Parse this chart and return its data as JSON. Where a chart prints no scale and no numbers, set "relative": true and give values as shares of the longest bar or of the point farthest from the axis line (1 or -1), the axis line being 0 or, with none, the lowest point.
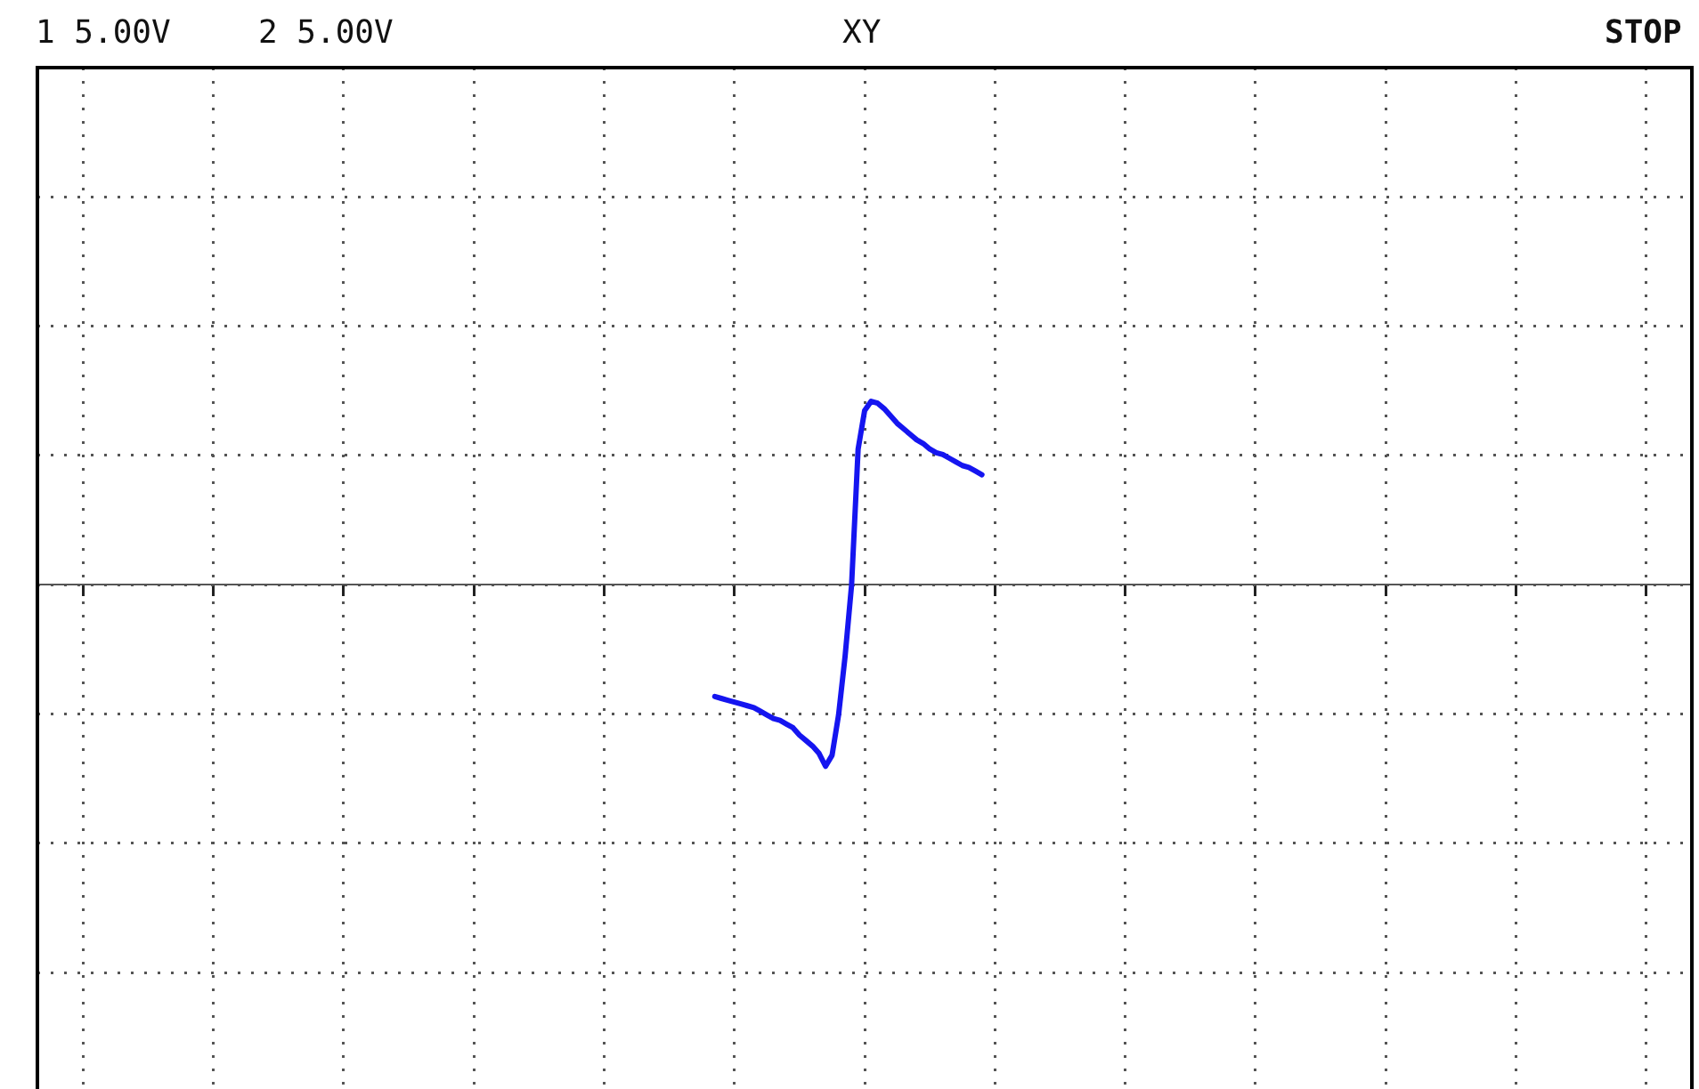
{
  "chart_data": {
    "type": "line",
    "title": "XY",
    "annotations": [
      "1 5.00V",
      "2 5.00V",
      "STOP"
    ],
    "relative": true,
    "grid": true,
    "legend": false,
    "marker": "none",
    "line_style": "solid",
    "categories": [
      null,
      null,
      null,
      null,
      null,
      null,
      null,
      null,
      null,
      null,
      null,
      null,
      null,
      null,
      null,
      null,
      null,
      null,
      null,
      null,
      null,
      null,
      null,
      null,
      null,
      null,
      null,
      null,
      null,
      null,
      null,
      null,
      null,
      null,
      null,
      null,
      null,
      null,
      null,
      null,
      null,
      null,
      null,
      null,
      null,
      null,
      null,
      null,
      null,
      null,
      null,
      null,
      null,
      null,
      null,
      null,
      null,
      null,
      null,
      null,
      null,
      null,
      null,
      null,
      null,
      null,
      null,
      null,
      null,
      null,
      null,
      null,
      null,
      null,
      null,
      null,
      null,
      null,
      null,
      null,
      null,
      null,
      null,
      null,
      null,
      null,
      null,
      null,
      null,
      null,
      null,
      null,
      null,
      null,
      null,
      null,
      null,
      null,
      null,
      null,
      null,
      null,
      null,
      null,
      null,
      null,
      null,
      null,
      null,
      null,
      null,
      null,
      null,
      null,
      null,
      null,
      null,
      null,
      null,
      null,
      null,
      null,
      null,
      null,
      null,
      null,
      null,
      null,
      null,
      null,
      null,
      null,
      null,
      null,
      null,
      null,
      null,
      null,
      null,
      null,
      null,
      null,
      null,
      null,
      null,
      null,
      null,
      null,
      null,
      null,
      null,
      null,
      null,
      null,
      null,
      null,
      null,
      null,
      null,
      null,
      null,
      null,
      null,
      null,
      null,
      null,
      null,
      null,
      null,
      null,
      null,
      null,
      null,
      null,
      null,
      null,
      null,
      null,
      null,
      null,
      null,
      null,
      null,
      null,
      null,
      null,
      null,
      null,
      null,
      null,
      null,
      null,
      null,
      null,
      null,
      null,
      null,
      null,
      null,
      null,
      null,
      null,
      null,
      null,
      null,
      null,
      null,
      null,
      null,
      null,
      null,
      null,
      null,
      null,
      null,
      null,
      null,
      null,
      null,
      null,
      null,
      null,
      null,
      null,
      null,
      null,
      null,
      null,
      null,
      null,
      null,
      null,
      null,
      null,
      null,
      null,
      null,
      null,
      null,
      null,
      null,
      null,
      null,
      null,
      null,
      null,
      null,
      null,
      null,
      null,
      null,
      null,
      null,
      null,
      null
    ],
    "series": [
      {
        "color": "#1515f0",
        "values": [
          null,
          null,
          null,
          null,
          null,
          null,
          null,
          null,
          null,
          null,
          null,
          null,
          null,
          null,
          null,
          null,
          null,
          null,
          null,
          null,
          null,
          null,
          null,
          null,
          null,
          null,
          null,
          null,
          null,
          null,
          null,
          null,
          null,
          null,
          null,
          null,
          null,
          null,
          null,
          null,
          null,
          null,
          null,
          null,
          null,
          null,
          null,
          null,
          null,
          null,
          null,
          null,
          null,
          null,
          null,
          null,
          null,
          null,
          null,
          null,
          null,
          null,
          null,
          null,
          null,
          null,
          null,
          null,
          null,
          null,
          null,
          null,
          null,
          null,
          null,
          null,
          null,
          null,
          null,
          null,
          null,
          null,
          null,
          null,
          null,
          null,
          null,
          null,
          null,
          null,
          null,
          null,
          null,
          null,
          null,
          null,
          null,
          null,
          null,
          null,
          null,
          null,
          null,
          null,
          -0.61,
          -0.62,
          -0.63,
          -0.64,
          -0.65,
          -0.66,
          -0.67,
          -0.69,
          -0.71,
          -0.73,
          -0.74,
          -0.76,
          -0.78,
          -0.82,
          -0.85,
          -0.88,
          -0.92,
          -0.99,
          -0.93,
          -0.71,
          -0.39,
          0,
          0.74,
          0.95,
          1,
          0.99,
          0.96,
          0.92,
          0.88,
          0.85,
          0.82,
          0.79,
          0.77,
          0.74,
          0.72,
          0.71,
          0.69,
          0.67,
          0.65,
          0.64,
          0.62,
          0.6,
          null,
          null,
          null,
          null,
          null,
          null,
          null,
          null,
          null,
          null,
          null,
          null,
          null,
          null,
          null,
          null,
          null,
          null,
          null,
          null,
          null,
          null,
          null,
          null,
          null,
          null,
          null,
          null,
          null,
          null,
          null,
          null,
          null,
          null,
          null,
          null,
          null,
          null,
          null,
          null,
          null,
          null,
          null,
          null,
          null,
          null,
          null,
          null,
          null,
          null,
          null,
          null,
          null,
          null,
          null,
          null,
          null,
          null,
          null,
          null,
          null,
          null,
          null,
          null,
          null,
          null,
          null,
          null,
          null,
          null,
          null,
          null,
          null,
          null,
          null,
          null,
          null,
          null,
          null,
          null,
          null,
          null,
          null,
          null,
          null,
          null,
          null,
          null,
          null,
          null,
          null,
          null,
          null,
          null,
          null,
          null,
          null,
          null,
          null,
          null,
          null,
          null,
          null,
          null,
          null,
          null,
          null,
          null,
          null
        ]
      }
    ]
  }
}
